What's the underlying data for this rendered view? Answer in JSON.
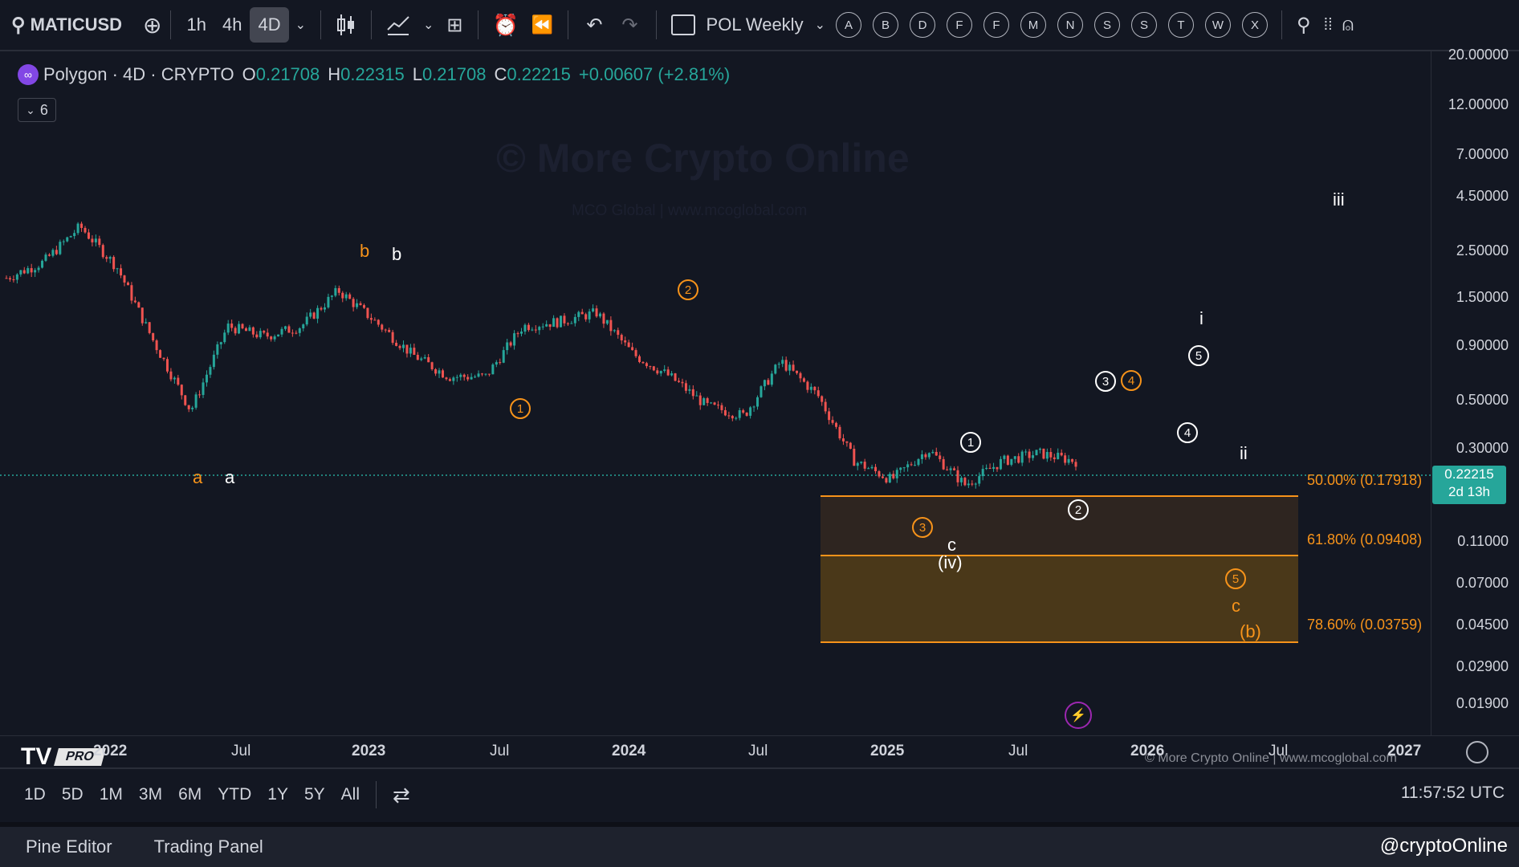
{
  "toolbar": {
    "symbol": "MATICUSD",
    "timeframes": [
      "1h",
      "4h",
      "4D"
    ],
    "active_timeframe": "4D",
    "layout_name": "POL Weekly",
    "letters": [
      "A",
      "B",
      "D",
      "F",
      "F",
      "M",
      "N",
      "S",
      "S",
      "T",
      "W",
      "X"
    ]
  },
  "legend": {
    "title": "Polygon · 4D · CRYPTO",
    "open_k": "O",
    "open": "0.21708",
    "high_k": "H",
    "high": "0.22315",
    "low_k": "L",
    "low": "0.21708",
    "close_k": "C",
    "close": "0.22215",
    "change": "+0.00607 (+2.81%)",
    "indicators_count": "6"
  },
  "watermark": {
    "title": "© More Crypto Online",
    "subtitle": "MCO Global  |  www.mcoglobal.com",
    "footer": "© More Crypto Online  |  www.mcoglobal.com"
  },
  "logo": {
    "pro": "PRO"
  },
  "waves": {
    "a_orange": "a",
    "a_white": "a",
    "b_orange": "b",
    "b_white": "b",
    "c_white": "c",
    "iv": "(iv)",
    "c_orange": "c",
    "b_paren": "(b)",
    "i": "i",
    "ii": "ii",
    "iii": "iii",
    "n1": "1",
    "n2": "2",
    "n3": "3",
    "n4": "4",
    "n5": "5"
  },
  "fib": {
    "f50": "50.00% (0.17918)",
    "f618": "61.80% (0.09408)",
    "f786": "78.60% (0.03759)"
  },
  "price_scale": [
    "20.00000",
    "12.00000",
    "7.00000",
    "4.50000",
    "2.50000",
    "1.50000",
    "0.90000",
    "0.50000",
    "0.30000",
    "0.11000",
    "0.07000",
    "0.04500",
    "0.02900",
    "0.01900"
  ],
  "current_price": {
    "value": "0.22215",
    "countdown": "2d 13h"
  },
  "time_axis": [
    {
      "t": "2022",
      "b": true
    },
    {
      "t": "Jul",
      "b": false
    },
    {
      "t": "2023",
      "b": true
    },
    {
      "t": "Jul",
      "b": false
    },
    {
      "t": "2024",
      "b": true
    },
    {
      "t": "Jul",
      "b": false
    },
    {
      "t": "2025",
      "b": true
    },
    {
      "t": "Jul",
      "b": false
    },
    {
      "t": "2026",
      "b": true
    },
    {
      "t": "Jul",
      "b": false
    },
    {
      "t": "2027",
      "b": true
    }
  ],
  "ranges": [
    "1D",
    "5D",
    "1M",
    "3M",
    "6M",
    "YTD",
    "1Y",
    "5Y",
    "All"
  ],
  "clock": "11:57:52 UTC",
  "bottom_tabs": [
    "Pine Editor",
    "Trading Panel"
  ],
  "handle": "@cryptoOnline",
  "colors": {
    "up": "#26a69a",
    "down": "#ef5350",
    "fib": "#f7931a",
    "bg": "#131722"
  },
  "chart_data": {
    "type": "candlestick",
    "y_scale": "log",
    "series": [
      {
        "name": "MATICUSD",
        "x": [
          "2021-11",
          "2021-12",
          "2022-01",
          "2022-03",
          "2022-05",
          "2022-06",
          "2022-08",
          "2022-10",
          "2022-12",
          "2023-02",
          "2023-04",
          "2023-06",
          "2023-08",
          "2023-10",
          "2023-12",
          "2024-02",
          "2024-03",
          "2024-05",
          "2024-07",
          "2024-08",
          "2024-10",
          "2024-12",
          "2025-01",
          "2025-03",
          "2025-04",
          "2025-05",
          "2025-06",
          "2025-07",
          "2025-08",
          "2025-09"
        ],
        "values": [
          1.6,
          1.9,
          2.8,
          1.8,
          0.8,
          0.38,
          0.95,
          0.85,
          0.95,
          1.4,
          1.0,
          0.7,
          0.55,
          0.55,
          0.95,
          1.0,
          1.1,
          0.7,
          0.55,
          0.4,
          0.36,
          0.65,
          0.45,
          0.22,
          0.18,
          0.25,
          0.17,
          0.22,
          0.24,
          0.22
        ]
      }
    ]
  }
}
